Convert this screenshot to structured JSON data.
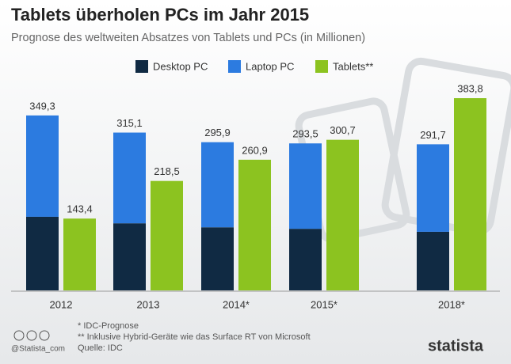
{
  "chart_data": {
    "type": "bar",
    "title": "Tablets überholen PCs im Jahr 2015",
    "subtitle": "Prognose des weltweiten Absatzes von Tablets und PCs (in Millionen)",
    "categories": [
      "2012",
      "2013",
      "2014*",
      "2015*",
      "2018*"
    ],
    "series": [
      {
        "name": "Desktop PC",
        "color": "#102a43",
        "values": [
          147,
          134,
          126,
          123,
          117
        ],
        "stack": "pc"
      },
      {
        "name": "Laptop PC",
        "color": "#2c7be0",
        "values": [
          202.3,
          181.1,
          169.9,
          170.5,
          174.7
        ],
        "stack": "pc"
      },
      {
        "name": "Tablets**",
        "color": "#8cc320",
        "values": [
          143.4,
          218.5,
          260.9,
          300.7,
          383.8
        ],
        "value_labels": [
          "143,4",
          "218,5",
          "260,9",
          "300,7",
          "383,8"
        ],
        "stack": "tablet"
      }
    ],
    "pc_totals": {
      "values": [
        349.3,
        315.1,
        295.9,
        293.5,
        291.7
      ],
      "value_labels": [
        "349,3",
        "315,1",
        "295,9",
        "293,5",
        "291,7"
      ]
    },
    "notes": [
      "* IDC-Prognose",
      "** Inklusive Hybrid-Geräte wie das Surface RT von Microsoft",
      "Quelle: IDC"
    ],
    "credit": "@Statista_com",
    "brand": "statista"
  }
}
